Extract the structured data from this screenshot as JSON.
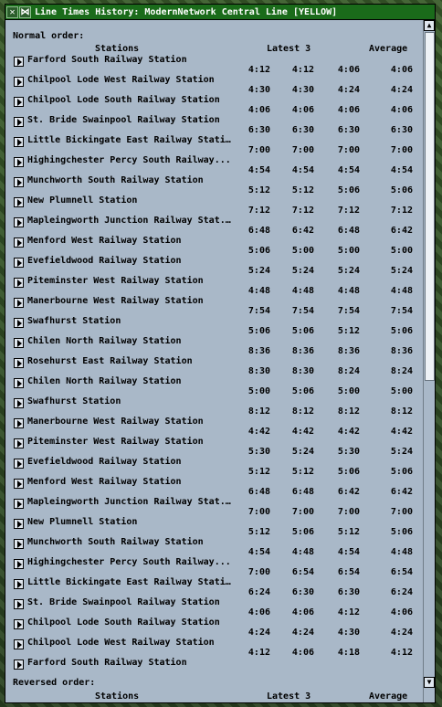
{
  "window": {
    "title": "Line Times History: ModernNetwork Central Line [YELLOW]",
    "close_glyph": "✕",
    "pin_glyph": "⋈"
  },
  "sections": {
    "normal_label": "Normal order:",
    "reversed_label": "Reversed order:"
  },
  "headers": {
    "stations": "Stations",
    "latest": "Latest 3",
    "average": "Average"
  },
  "stations": [
    "Farford South Railway Station",
    "Chilpool Lode West Railway Station",
    "Chilpool Lode South Railway Station",
    "St. Bride Swainpool Railway Station",
    "Little Bickingate East Railway Statio...",
    "Highingchester Percy South Railway...",
    "Munchworth South Railway Station",
    "New Plumnell Station",
    "Mapleingworth Junction Railway Stat...",
    "Menford West Railway Station",
    "Evefieldwood Railway Station",
    "Piteminster West Railway Station",
    "Manerbourne West Railway Station",
    "Swafhurst Station",
    "Chilen North Railway Station",
    "Rosehurst East Railway Station",
    "Chilen North Railway Station",
    "Swafhurst Station",
    "Manerbourne West Railway Station",
    "Piteminster West Railway Station",
    "Evefieldwood Railway Station",
    "Menford West Railway Station",
    "Mapleingworth Junction Railway Stat...",
    "New Plumnell Station",
    "Munchworth South Railway Station",
    "Highingchester Percy South Railway...",
    "Little Bickingate East Railway Statio...",
    "St. Bride Swainpool Railway Station",
    "Chilpool Lode South Railway Station",
    "Chilpool Lode West Railway Station",
    "Farford South Railway Station"
  ],
  "times": [
    [
      "4:12",
      "4:12",
      "4:06",
      "4:06"
    ],
    [
      "4:30",
      "4:30",
      "4:24",
      "4:24"
    ],
    [
      "4:06",
      "4:06",
      "4:06",
      "4:06"
    ],
    [
      "6:30",
      "6:30",
      "6:30",
      "6:30"
    ],
    [
      "7:00",
      "7:00",
      "7:00",
      "7:00"
    ],
    [
      "4:54",
      "4:54",
      "4:54",
      "4:54"
    ],
    [
      "5:12",
      "5:12",
      "5:06",
      "5:06"
    ],
    [
      "7:12",
      "7:12",
      "7:12",
      "7:12"
    ],
    [
      "6:48",
      "6:42",
      "6:48",
      "6:42"
    ],
    [
      "5:06",
      "5:00",
      "5:00",
      "5:00"
    ],
    [
      "5:24",
      "5:24",
      "5:24",
      "5:24"
    ],
    [
      "4:48",
      "4:48",
      "4:48",
      "4:48"
    ],
    [
      "7:54",
      "7:54",
      "7:54",
      "7:54"
    ],
    [
      "5:06",
      "5:06",
      "5:12",
      "5:06"
    ],
    [
      "8:36",
      "8:36",
      "8:36",
      "8:36"
    ],
    [
      "8:30",
      "8:30",
      "8:24",
      "8:24"
    ],
    [
      "5:00",
      "5:06",
      "5:00",
      "5:00"
    ],
    [
      "8:12",
      "8:12",
      "8:12",
      "8:12"
    ],
    [
      "4:42",
      "4:42",
      "4:42",
      "4:42"
    ],
    [
      "5:30",
      "5:24",
      "5:30",
      "5:24"
    ],
    [
      "5:12",
      "5:12",
      "5:06",
      "5:06"
    ],
    [
      "6:48",
      "6:48",
      "6:42",
      "6:42"
    ],
    [
      "7:00",
      "7:00",
      "7:00",
      "7:00"
    ],
    [
      "5:12",
      "5:06",
      "5:12",
      "5:06"
    ],
    [
      "4:54",
      "4:48",
      "4:54",
      "4:48"
    ],
    [
      "7:00",
      "6:54",
      "6:54",
      "6:54"
    ],
    [
      "6:24",
      "6:30",
      "6:30",
      "6:24"
    ],
    [
      "4:06",
      "4:06",
      "4:12",
      "4:06"
    ],
    [
      "4:24",
      "4:24",
      "4:30",
      "4:24"
    ],
    [
      "4:12",
      "4:06",
      "4:18",
      "4:12"
    ]
  ],
  "scrollbar": {
    "up_glyph": "▲",
    "down_glyph": "▼"
  }
}
